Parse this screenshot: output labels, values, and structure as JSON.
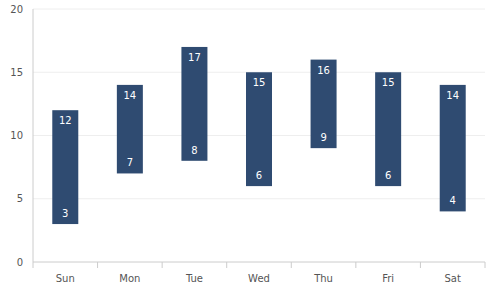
{
  "chart_data": {
    "type": "range_bar",
    "categories": [
      "Sun",
      "Mon",
      "Tue",
      "Wed",
      "Thu",
      "Fri",
      "Sat"
    ],
    "values": [
      [
        3,
        12
      ],
      [
        7,
        14
      ],
      [
        8,
        17
      ],
      [
        6,
        15
      ],
      [
        9,
        16
      ],
      [
        6,
        15
      ],
      [
        4,
        14
      ]
    ],
    "color": "#2f4b71",
    "ylim": [
      0,
      20
    ],
    "yticks": [
      0,
      5,
      10,
      15,
      20
    ],
    "grid": true,
    "data_labels": true
  }
}
